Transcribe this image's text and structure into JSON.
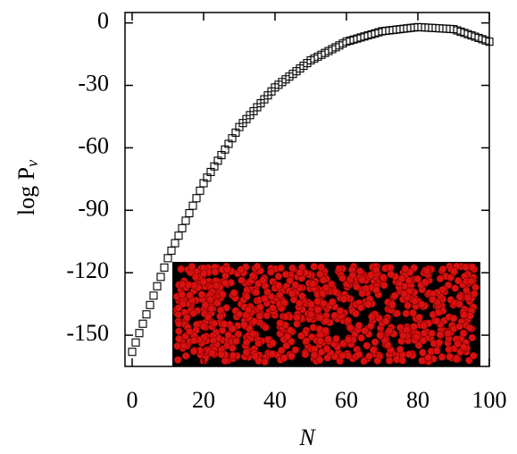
{
  "chart_data": {
    "type": "scatter",
    "xlabel": "N",
    "ylabel": "log P",
    "ylabel_sub": "v",
    "x": [
      0,
      1,
      2,
      3,
      4,
      5,
      6,
      7,
      8,
      9,
      10,
      11,
      12,
      13,
      14,
      15,
      16,
      17,
      18,
      19,
      20,
      21,
      22,
      23,
      24,
      25,
      26,
      27,
      28,
      29,
      30,
      31,
      32,
      33,
      34,
      35,
      36,
      37,
      38,
      39,
      40,
      41,
      42,
      43,
      44,
      45,
      46,
      47,
      48,
      49,
      50,
      51,
      52,
      53,
      54,
      55,
      56,
      57,
      58,
      59,
      60,
      61,
      62,
      63,
      64,
      65,
      66,
      67,
      68,
      69,
      70,
      71,
      72,
      73,
      74,
      75,
      76,
      77,
      78,
      79,
      80,
      81,
      82,
      83,
      84,
      85,
      86,
      87,
      88,
      89,
      90,
      91,
      92,
      93,
      94,
      95,
      96,
      97,
      98,
      99,
      100
    ],
    "values": [
      -158,
      -153.5,
      -149,
      -144.5,
      -140,
      -135.5,
      -131,
      -126.5,
      -122,
      -117.5,
      -113,
      -109.4,
      -105.8,
      -102.2,
      -98.6,
      -95,
      -91.4,
      -87.8,
      -84.2,
      -80.6,
      -77,
      -74.3,
      -71.6,
      -68.9,
      -66.2,
      -63.5,
      -60.8,
      -58.1,
      -55.4,
      -52.7,
      -50,
      -48.1,
      -46.2,
      -44.3,
      -42.4,
      -40.5,
      -38.6,
      -36.7,
      -34.8,
      -32.9,
      -31,
      -29.7,
      -28.4,
      -27.1,
      -25.8,
      -24.5,
      -23.2,
      -21.9,
      -20.6,
      -19.3,
      -18,
      -17.1,
      -16.2,
      -15.3,
      -14.4,
      -13.5,
      -12.6,
      -11.7,
      -10.8,
      -9.9,
      -9,
      -8.5,
      -8,
      -7.5,
      -7,
      -6.5,
      -6,
      -5.5,
      -5,
      -4.5,
      -4,
      -3.8,
      -3.6,
      -3.4,
      -3.2,
      -3,
      -2.8,
      -2.6,
      -2.4,
      -2.2,
      -2,
      -2.1,
      -2.2,
      -2.3,
      -2.4,
      -2.5,
      -2.6,
      -2.7,
      -2.8,
      -2.9,
      -3,
      -3.6,
      -4.2,
      -4.8,
      -5.4,
      -6,
      -6.6,
      -7.2,
      -7.8,
      -8.4,
      -9
    ],
    "color": "#000000",
    "xlim": [
      -2,
      100
    ],
    "ylim": [
      -165,
      5
    ],
    "xticks": [
      0,
      20,
      40,
      60,
      80,
      100
    ],
    "yticks": [
      0,
      -30,
      -60,
      -90,
      -120,
      -150
    ]
  }
}
